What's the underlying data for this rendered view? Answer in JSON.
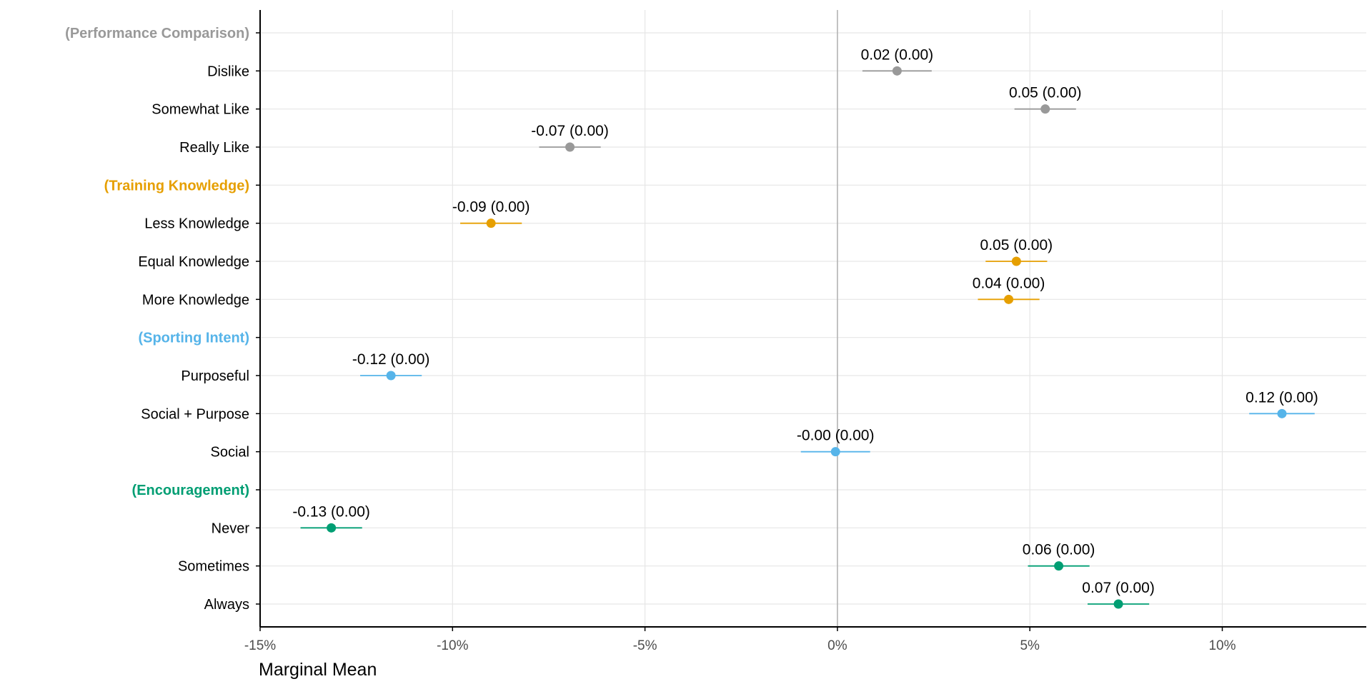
{
  "chart_data": {
    "type": "scatter",
    "subtype": "dot-with-error-bars",
    "xlabel": "Marginal Mean",
    "xlim": [
      -0.15,
      0.135
    ],
    "x_ticks": [
      -0.15,
      -0.1,
      -0.05,
      0,
      0.05,
      0.1
    ],
    "x_tick_labels": [
      "-15%",
      "-10%",
      "-5%",
      "0%",
      "5%",
      "10%"
    ],
    "grid": true,
    "reference_line_x": 0,
    "rows": [
      {
        "label": "(Performance Comparison)",
        "is_header": true,
        "group": "performance"
      },
      {
        "label": "Dislike",
        "group": "performance",
        "x": 0.0155,
        "ci": [
          0.0065,
          0.0245
        ],
        "annotation": "0.02 (0.00)"
      },
      {
        "label": "Somewhat Like",
        "group": "performance",
        "x": 0.054,
        "ci": [
          0.046,
          0.062
        ],
        "annotation": "0.05 (0.00)"
      },
      {
        "label": "Really Like",
        "group": "performance",
        "x": -0.0695,
        "ci": [
          -0.0775,
          -0.0615
        ],
        "annotation": "-0.07 (0.00)"
      },
      {
        "label": "(Training Knowledge)",
        "is_header": true,
        "group": "training"
      },
      {
        "label": "Less Knowledge",
        "group": "training",
        "x": -0.09,
        "ci": [
          -0.098,
          -0.082
        ],
        "annotation": "-0.09 (0.00)"
      },
      {
        "label": "Equal Knowledge",
        "group": "training",
        "x": 0.0465,
        "ci": [
          0.0385,
          0.0545
        ],
        "annotation": "0.05 (0.00)"
      },
      {
        "label": "More Knowledge",
        "group": "training",
        "x": 0.0445,
        "ci": [
          0.0365,
          0.0525
        ],
        "annotation": "0.04 (0.00)"
      },
      {
        "label": "(Sporting Intent)",
        "is_header": true,
        "group": "sporting"
      },
      {
        "label": "Purposeful",
        "group": "sporting",
        "x": -0.116,
        "ci": [
          -0.124,
          -0.108
        ],
        "annotation": "-0.12 (0.00)"
      },
      {
        "label": "Social + Purpose",
        "group": "sporting",
        "x": 0.1155,
        "ci": [
          0.107,
          0.124
        ],
        "annotation": "0.12 (0.00)"
      },
      {
        "label": "Social",
        "group": "sporting",
        "x": -0.0005,
        "ci": [
          -0.0095,
          0.0085
        ],
        "annotation": "-0.00 (0.00)"
      },
      {
        "label": "(Encouragement)",
        "is_header": true,
        "group": "encouragement"
      },
      {
        "label": "Never",
        "group": "encouragement",
        "x": -0.1315,
        "ci": [
          -0.1395,
          -0.1235
        ],
        "annotation": "-0.13 (0.00)"
      },
      {
        "label": "Sometimes",
        "group": "encouragement",
        "x": 0.0575,
        "ci": [
          0.0495,
          0.0655
        ],
        "annotation": "0.06 (0.00)"
      },
      {
        "label": "Always",
        "group": "encouragement",
        "x": 0.073,
        "ci": [
          0.065,
          0.081
        ],
        "annotation": "0.07 (0.00)"
      }
    ]
  },
  "colors": {
    "performance": "#999999",
    "training": "#E69F00",
    "sporting": "#56B4E9",
    "encouragement": "#009E73"
  }
}
